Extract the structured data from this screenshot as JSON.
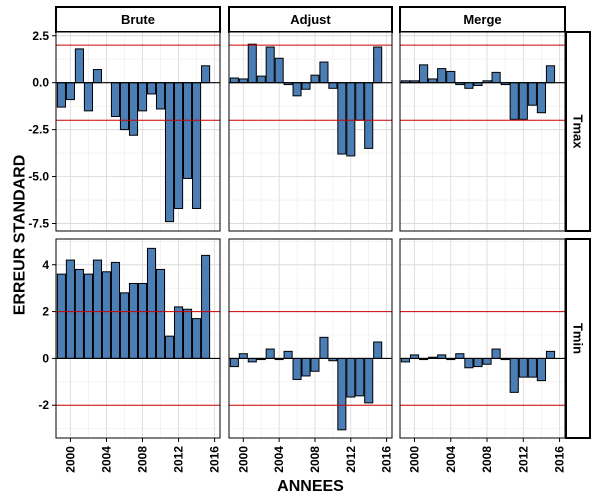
{
  "chart_data": {
    "type": "bar",
    "xlabel": "ANNEES",
    "ylabel": "ERREUR STANDARD",
    "columns": [
      "Brute",
      "Adjust",
      "Merge"
    ],
    "rows": [
      "Tmax",
      "Tmin"
    ],
    "years": [
      1999,
      2000,
      2001,
      2002,
      2003,
      2004,
      2005,
      2006,
      2007,
      2008,
      2009,
      2010,
      2011,
      2012,
      2013,
      2014,
      2015,
      2016
    ],
    "x_ticks": [
      2000,
      2004,
      2008,
      2012,
      2016
    ],
    "x_tick_labels": [
      "2000",
      "2004",
      "2008",
      "2012",
      "2016"
    ],
    "xlim": [
      1998.4,
      2016.6
    ],
    "bar_color": "#4a7eb4",
    "reference_lines": [
      2,
      -2
    ],
    "reference_line_color": "#cc0000",
    "panels": {
      "Tmax": {
        "ylim": [
          -7.9,
          2.7
        ],
        "y_ticks": [
          2.5,
          0,
          -2.5,
          -5,
          -7.5
        ],
        "y_tick_labels": [
          "2.5",
          "0.0",
          "-2.5",
          "-5.0",
          "-7.5"
        ],
        "series": {
          "Brute": [
            -1.3,
            -0.9,
            1.8,
            -1.5,
            0.7,
            0.0,
            -1.8,
            -2.5,
            -2.8,
            -1.5,
            -0.6,
            -1.4,
            -7.4,
            -6.7,
            -5.1,
            -6.7,
            0.9,
            null
          ],
          "Adjust": [
            0.25,
            0.2,
            2.05,
            0.35,
            1.9,
            1.3,
            -0.1,
            -0.7,
            -0.35,
            0.4,
            1.1,
            -0.3,
            -3.8,
            -3.9,
            -2.0,
            -3.5,
            1.9,
            null
          ],
          "Merge": [
            0.1,
            0.1,
            0.95,
            0.2,
            0.75,
            0.6,
            -0.1,
            -0.3,
            -0.15,
            0.1,
            0.55,
            -0.1,
            -1.95,
            -1.95,
            -1.2,
            -1.6,
            0.9,
            null
          ]
        }
      },
      "Tmin": {
        "ylim": [
          -3.4,
          5.1
        ],
        "y_ticks": [
          4,
          2,
          0,
          -2
        ],
        "y_tick_labels": [
          "4",
          "2",
          "0",
          "-2"
        ],
        "series": {
          "Brute": [
            3.6,
            4.2,
            3.8,
            3.6,
            4.2,
            3.7,
            4.1,
            2.8,
            3.2,
            3.2,
            4.7,
            3.8,
            0.95,
            2.2,
            2.1,
            1.7,
            4.4,
            null
          ],
          "Adjust": [
            -0.35,
            0.2,
            -0.15,
            -0.05,
            0.4,
            -0.05,
            0.3,
            -0.9,
            -0.75,
            -0.55,
            0.9,
            -0.1,
            -3.05,
            -1.65,
            -1.6,
            -1.9,
            0.7,
            null
          ],
          "Merge": [
            -0.15,
            0.15,
            -0.05,
            0.05,
            0.15,
            -0.05,
            0.2,
            -0.4,
            -0.35,
            -0.25,
            0.4,
            -0.05,
            -1.45,
            -0.8,
            -0.8,
            -0.95,
            0.3,
            null
          ]
        }
      }
    }
  }
}
